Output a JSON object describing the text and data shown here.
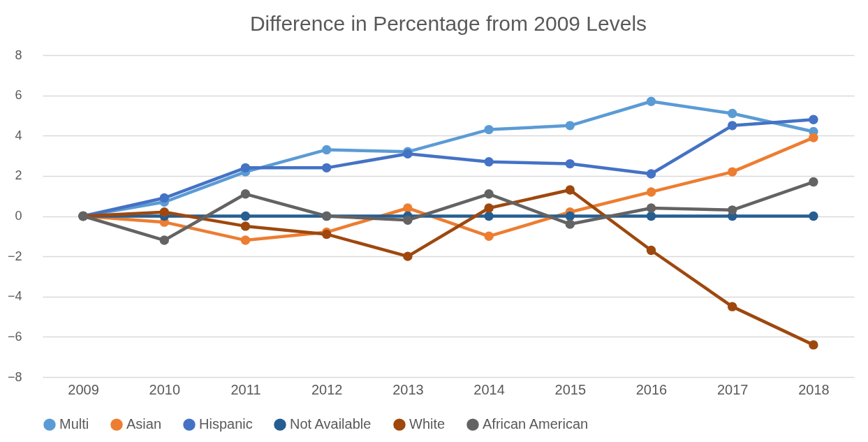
{
  "chart_data": {
    "type": "line",
    "title": "Difference in Percentage from 2009 Levels",
    "categories": [
      "2009",
      "2010",
      "2011",
      "2012",
      "2013",
      "2014",
      "2015",
      "2016",
      "2017",
      "2018"
    ],
    "series": [
      {
        "name": "Multi",
        "color": "#5b9bd5",
        "values": [
          0,
          0.7,
          2.2,
          3.3,
          3.2,
          4.3,
          4.5,
          5.7,
          5.1,
          4.2
        ]
      },
      {
        "name": "Asian",
        "color": "#ed7d31",
        "values": [
          0,
          -0.3,
          -1.2,
          -0.8,
          0.4,
          -1.0,
          0.2,
          1.2,
          2.2,
          3.9
        ]
      },
      {
        "name": "Hispanic",
        "color": "#4472c4",
        "values": [
          0,
          0.9,
          2.4,
          2.4,
          3.1,
          2.7,
          2.6,
          2.1,
          4.5,
          4.8
        ]
      },
      {
        "name": "Not Available",
        "color": "#255e91",
        "values": [
          0,
          0,
          0,
          0,
          0,
          0,
          0,
          0,
          0,
          0
        ]
      },
      {
        "name": "White",
        "color": "#9e480e",
        "values": [
          0,
          0.2,
          -0.5,
          -0.9,
          -2.0,
          0.4,
          1.3,
          -1.7,
          -4.5,
          -6.4
        ]
      },
      {
        "name": "African American",
        "color": "#636363",
        "values": [
          0,
          -1.2,
          1.1,
          0,
          -0.2,
          1.1,
          -0.4,
          0.4,
          0.3,
          1.7
        ]
      }
    ],
    "ylim": [
      -8,
      8
    ],
    "yticks": [
      -8,
      -6,
      -4,
      -2,
      0,
      2,
      4,
      6,
      8
    ],
    "grid": "y",
    "legend": "bottom",
    "marker": "circle",
    "line_style": "solid"
  }
}
